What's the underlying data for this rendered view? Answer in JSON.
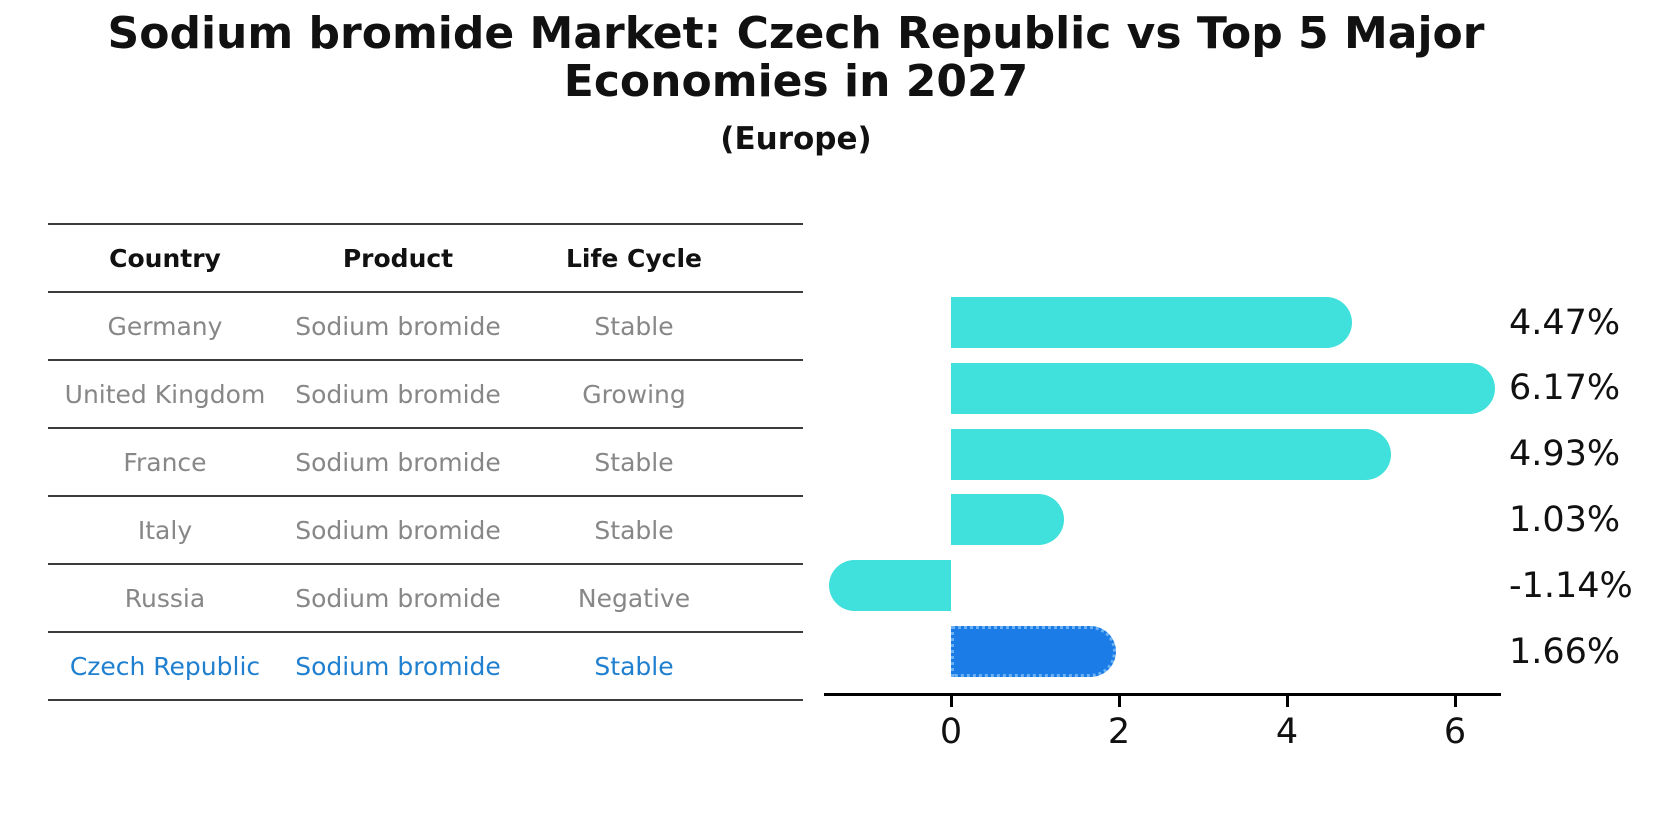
{
  "title": "Sodium bromide Market: Czech Republic vs Top 5 Major Economies in 2027",
  "subtitle": "(Europe)",
  "table": {
    "headers": [
      "Country",
      "Product",
      "Life Cycle"
    ],
    "rows": [
      {
        "country": "Germany",
        "product": "Sodium bromide",
        "life_cycle": "Stable",
        "highlight": false
      },
      {
        "country": "United Kingdom",
        "product": "Sodium bromide",
        "life_cycle": "Growing",
        "highlight": false
      },
      {
        "country": "France",
        "product": "Sodium bromide",
        "life_cycle": "Stable",
        "highlight": false
      },
      {
        "country": "Italy",
        "product": "Sodium bromide",
        "life_cycle": "Stable",
        "highlight": false
      },
      {
        "country": "Russia",
        "product": "Sodium bromide",
        "life_cycle": "Negative",
        "highlight": false
      },
      {
        "country": "Czech Republic",
        "product": "Sodium bromide",
        "life_cycle": "Stable",
        "highlight": true
      }
    ]
  },
  "chart_data": {
    "type": "bar",
    "orientation": "horizontal",
    "categories": [
      "Germany",
      "United Kingdom",
      "France",
      "Italy",
      "Russia",
      "Czech Republic"
    ],
    "values": [
      4.47,
      6.17,
      4.93,
      1.03,
      -1.14,
      1.66
    ],
    "value_labels": [
      "4.47%",
      "6.17%",
      "4.93%",
      "1.03%",
      "-1.14%",
      "1.66%"
    ],
    "x_ticks": [
      "0",
      "2",
      "4",
      "6"
    ],
    "x_tick_values": [
      0,
      2,
      4,
      6
    ],
    "xlim": [
      -1.5,
      6.55
    ],
    "grid": false,
    "legend": "none",
    "highlight_index": 5,
    "bar_color": "#40e0dc",
    "highlight_bar_color": "#1b7ce8",
    "highlight_text_color": "#2080cf",
    "label_color": "#111111",
    "axis_color": "#000000"
  }
}
